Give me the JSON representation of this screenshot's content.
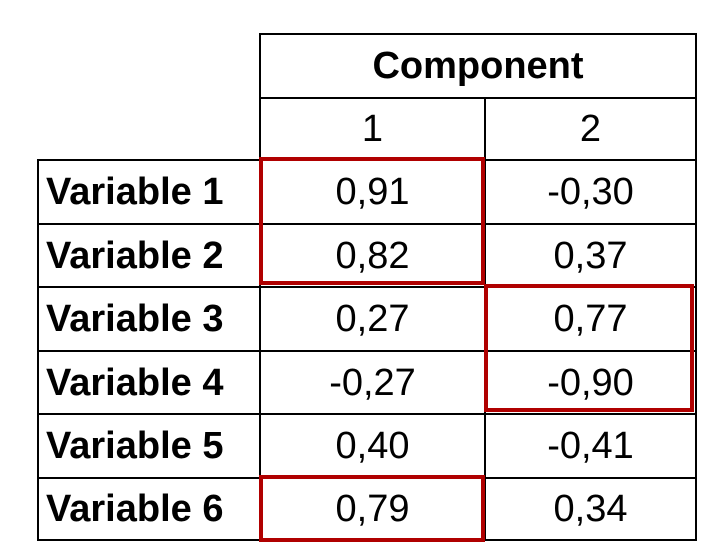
{
  "table": {
    "header": "Component",
    "columns": [
      "1",
      "2"
    ],
    "rows": [
      {
        "label": "Variable 1",
        "values": [
          "0,91",
          "-0,30"
        ]
      },
      {
        "label": "Variable 2",
        "values": [
          "0,82",
          "0,37"
        ]
      },
      {
        "label": "Variable 3",
        "values": [
          "0,27",
          "0,77"
        ]
      },
      {
        "label": "Variable 4",
        "values": [
          "-0,27",
          "-0,90"
        ]
      },
      {
        "label": "Variable 5",
        "values": [
          "0,40",
          "-0,41"
        ]
      },
      {
        "label": "Variable 6",
        "values": [
          "0,79",
          "0,34"
        ]
      }
    ],
    "highlight_color": "#b00000",
    "highlighted_cells": [
      {
        "row": 0,
        "col": 0,
        "rowspan": 2
      },
      {
        "row": 2,
        "col": 1,
        "rowspan": 2
      },
      {
        "row": 5,
        "col": 0,
        "rowspan": 1
      }
    ]
  }
}
